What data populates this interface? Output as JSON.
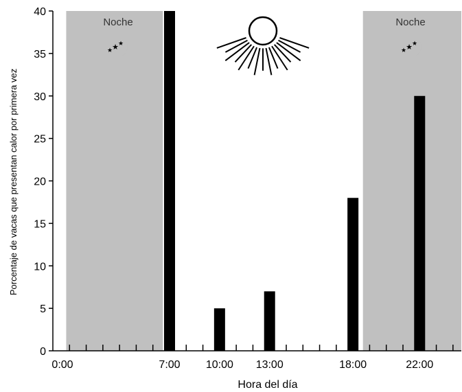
{
  "chart_data": {
    "type": "bar",
    "xlabel": "Hora del día",
    "ylabel": "Porcentaje de vacas que presentan calor por primera vez",
    "x_ticks": [
      "0:00",
      "7:00",
      "10:00",
      "13:00",
      "18:00",
      "22:00"
    ],
    "x_tick_hours": [
      0,
      7,
      10,
      13,
      18,
      22
    ],
    "xlim": [
      0,
      24.5
    ],
    "ylim": [
      0,
      40
    ],
    "y_ticks": [
      0,
      5,
      10,
      15,
      20,
      25,
      30,
      35,
      40
    ],
    "bars": [
      {
        "hour": 7,
        "value": 40
      },
      {
        "hour": 10,
        "value": 5
      },
      {
        "hour": 13,
        "value": 7
      },
      {
        "hour": 18,
        "value": 18
      },
      {
        "hour": 22,
        "value": 30
      }
    ],
    "night_periods": [
      {
        "label": "Noche",
        "start_hour": 0.8,
        "end_hour": 6.6
      },
      {
        "label": "Noche",
        "start_hour": 18.6,
        "end_hour": 24.5
      }
    ],
    "grid": false,
    "colors": {
      "bars": "#000000",
      "night": "#c0c0c0",
      "background": "#ffffff"
    },
    "icons": [
      "sun-icon",
      "moon-stars-icon",
      "moon-stars-icon"
    ]
  }
}
